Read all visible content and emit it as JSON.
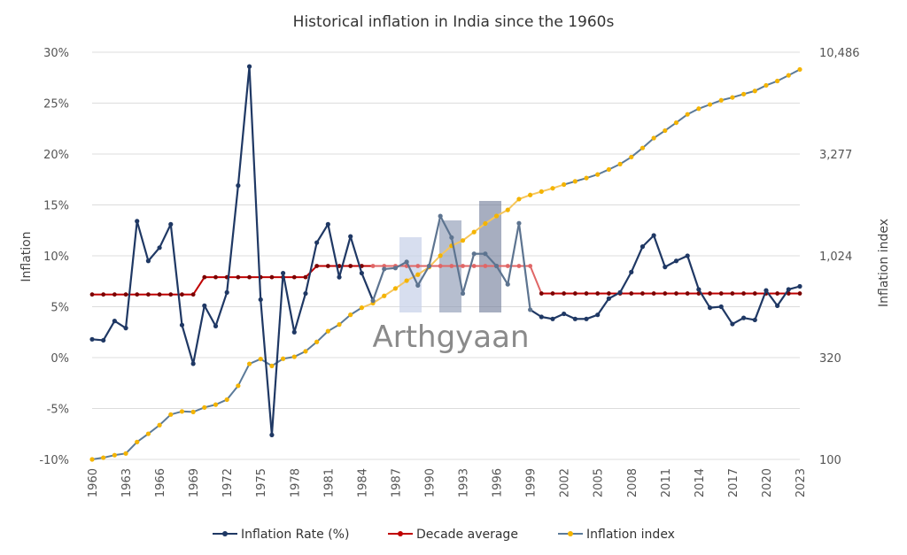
{
  "chart_data": {
    "type": "line",
    "title": "Historical inflation in India since the 1960s",
    "ylabel": "Inflation",
    "y2label": "Inflation index",
    "ylim": [
      -10,
      30
    ],
    "y_ticks": [
      "-10%",
      "-5%",
      "0%",
      "5%",
      "10%",
      "15%",
      "20%",
      "25%",
      "30%"
    ],
    "y2_scale": "log",
    "y2lim": [
      100,
      10486
    ],
    "y2_ticks": [
      "100",
      "320",
      "1,024",
      "3,277",
      "10,486"
    ],
    "x_tick_labels": [
      "1960",
      "1963",
      "1966",
      "1969",
      "1972",
      "1975",
      "1978",
      "1981",
      "1984",
      "1987",
      "1990",
      "1993",
      "1996",
      "1999",
      "2002",
      "2005",
      "2008",
      "2011",
      "2014",
      "2017",
      "2020",
      "2023"
    ],
    "grid": true,
    "legend_position": "bottom",
    "watermark": "Arthgyaan",
    "colors": {
      "inflation_rate": "#1f3864",
      "decade_average": "#c00000",
      "inflation_index": "#f4b400"
    },
    "x": [
      1960,
      1961,
      1962,
      1963,
      1964,
      1965,
      1966,
      1967,
      1968,
      1969,
      1970,
      1971,
      1972,
      1973,
      1974,
      1975,
      1976,
      1977,
      1978,
      1979,
      1980,
      1981,
      1982,
      1983,
      1984,
      1985,
      1986,
      1987,
      1988,
      1989,
      1990,
      1991,
      1992,
      1993,
      1994,
      1995,
      1996,
      1997,
      1998,
      1999,
      2000,
      2001,
      2002,
      2003,
      2004,
      2005,
      2006,
      2007,
      2008,
      2009,
      2010,
      2011,
      2012,
      2013,
      2014,
      2015,
      2016,
      2017,
      2018,
      2019,
      2020,
      2021,
      2022,
      2023
    ],
    "series": [
      {
        "name": "Inflation Rate (%)",
        "values": [
          1.8,
          1.7,
          3.6,
          2.9,
          13.4,
          9.5,
          10.8,
          13.1,
          3.2,
          -0.6,
          5.1,
          3.1,
          6.4,
          16.9,
          28.6,
          5.7,
          -7.6,
          8.3,
          2.5,
          6.3,
          11.3,
          13.1,
          7.9,
          11.9,
          8.3,
          5.6,
          8.7,
          8.8,
          9.4,
          7.1,
          9.0,
          13.9,
          11.8,
          6.3,
          10.2,
          10.2,
          9.0,
          7.2,
          13.2,
          4.7,
          4.0,
          3.8,
          4.3,
          3.8,
          3.8,
          4.2,
          5.8,
          6.4,
          8.4,
          10.9,
          12.0,
          8.9,
          9.5,
          10.0,
          6.7,
          4.9,
          5.0,
          3.3,
          3.9,
          3.7,
          6.6,
          5.1,
          6.7,
          7.0
        ]
      },
      {
        "name": "Decade average",
        "values": [
          6.2,
          6.2,
          6.2,
          6.2,
          6.2,
          6.2,
          6.2,
          6.2,
          6.2,
          6.2,
          7.9,
          7.9,
          7.9,
          7.9,
          7.9,
          7.9,
          7.9,
          7.9,
          7.9,
          7.9,
          9.0,
          9.0,
          9.0,
          9.0,
          9.0,
          9.0,
          9.0,
          9.0,
          9.0,
          9.0,
          9.0,
          9.0,
          9.0,
          9.0,
          9.0,
          9.0,
          9.0,
          9.0,
          9.0,
          9.0,
          6.3,
          6.3,
          6.3,
          6.3,
          6.3,
          6.3,
          6.3,
          6.3,
          6.3,
          6.3,
          6.3,
          6.3,
          6.3,
          6.3,
          6.3,
          6.3,
          6.3,
          6.3,
          6.3,
          6.3,
          6.3,
          6.3,
          6.3,
          6.3
        ]
      },
      {
        "name": "Inflation index",
        "values": [
          100,
          102,
          105,
          107,
          122,
          134,
          148,
          167,
          173,
          172,
          181,
          187,
          198,
          232,
          298,
          315,
          291,
          316,
          323,
          344,
          383,
          433,
          467,
          522,
          566,
          596,
          648,
          705,
          771,
          826,
          901,
          1026,
          1148,
          1220,
          1344,
          1481,
          1614,
          1730,
          1958,
          2052,
          2134,
          2215,
          2311,
          2398,
          2490,
          2594,
          2746,
          2921,
          3165,
          3510,
          3932,
          4282,
          4688,
          5156,
          5501,
          5769,
          6056,
          6254,
          6496,
          6738,
          7180,
          7547,
          8049,
          8612
        ]
      }
    ]
  }
}
